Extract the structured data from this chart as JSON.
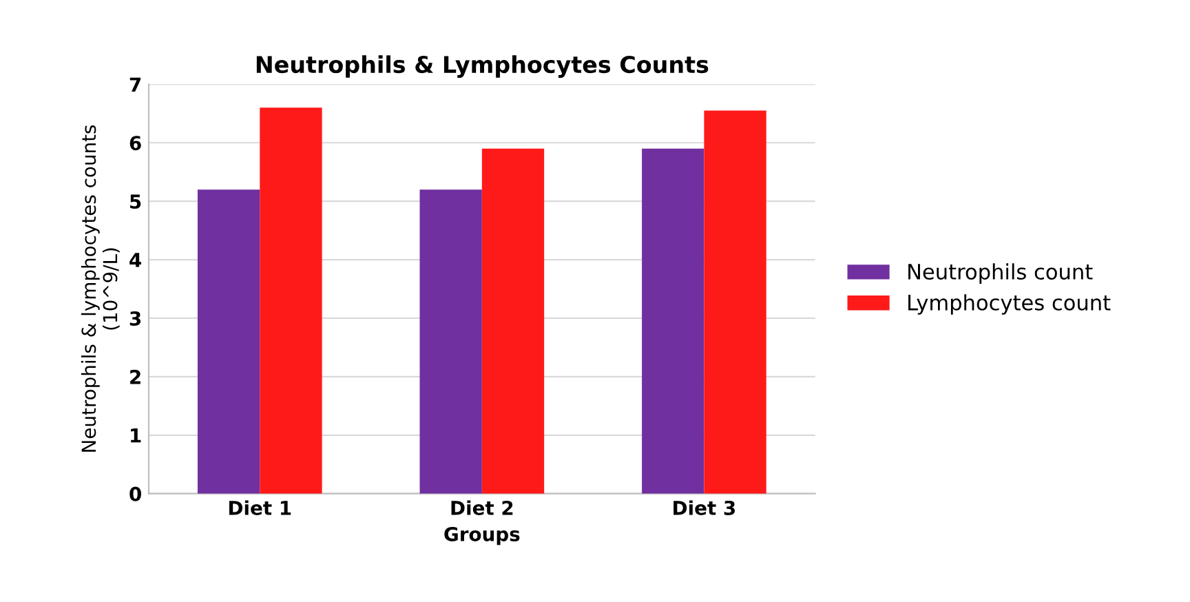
{
  "chart_data": {
    "type": "bar",
    "title": "Neutrophils & Lymphocytes Counts",
    "xlabel": "Groups",
    "ylabel": "Neutrophils & lymphocytes counts\n(10^9/L)",
    "categories": [
      "Diet 1",
      "Diet 2",
      "Diet 3"
    ],
    "series": [
      {
        "name": "Neutrophils count",
        "color": "#7030a0",
        "values": [
          5.2,
          5.2,
          5.9
        ]
      },
      {
        "name": "Lymphocytes count",
        "color": "#ff1a1a",
        "values": [
          6.6,
          5.9,
          6.55
        ]
      }
    ],
    "ylim": [
      0,
      7
    ],
    "yticks": [
      0,
      1,
      2,
      3,
      4,
      5,
      6,
      7
    ],
    "grid": "y",
    "legend": "right"
  }
}
